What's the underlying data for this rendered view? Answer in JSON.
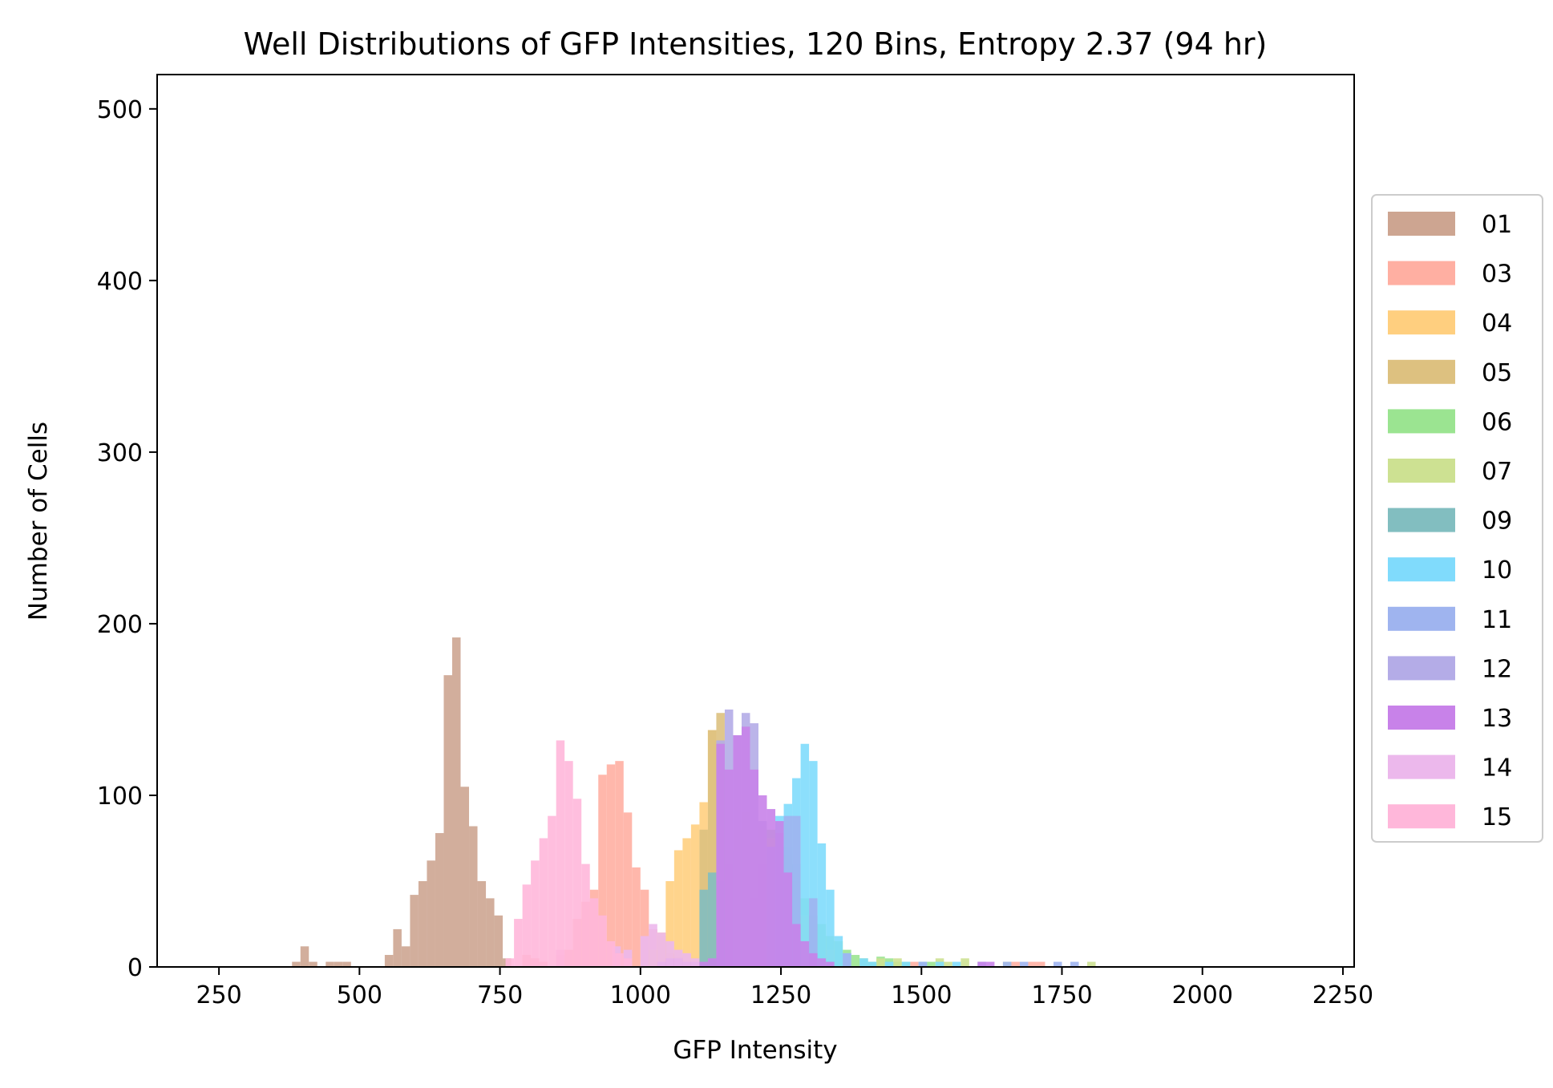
{
  "chart_data": {
    "type": "histogram",
    "title": "Well Distributions of GFP Intensities, 120 Bins, Entropy 2.37 (94 hr)",
    "xlabel": "GFP Intensity",
    "ylabel": "Number of Cells",
    "xlim": [
      140,
      2270
    ],
    "ylim": [
      0,
      520
    ],
    "x_ticks": [
      250,
      500,
      750,
      1000,
      1250,
      1500,
      1750,
      2000,
      2250
    ],
    "y_ticks": [
      0,
      100,
      200,
      300,
      400,
      500
    ],
    "bin_width": 15,
    "legend_position": "right",
    "series": [
      {
        "name": "01",
        "color": "#cda591",
        "values": [
          [
            380,
            3
          ],
          [
            395,
            12
          ],
          [
            410,
            3
          ],
          [
            440,
            3
          ],
          [
            455,
            3
          ],
          [
            470,
            3
          ],
          [
            545,
            7
          ],
          [
            560,
            22
          ],
          [
            575,
            12
          ],
          [
            590,
            42
          ],
          [
            605,
            50
          ],
          [
            620,
            62
          ],
          [
            635,
            78
          ],
          [
            650,
            170
          ],
          [
            665,
            192
          ],
          [
            680,
            105
          ],
          [
            695,
            82
          ],
          [
            710,
            50
          ],
          [
            725,
            40
          ],
          [
            740,
            30
          ],
          [
            755,
            5
          ]
        ]
      },
      {
        "name": "03",
        "color": "#ffafa2",
        "values": [
          [
            790,
            7
          ],
          [
            805,
            5
          ],
          [
            820,
            3
          ],
          [
            850,
            7
          ],
          [
            865,
            10
          ],
          [
            880,
            28
          ],
          [
            895,
            38
          ],
          [
            910,
            45
          ],
          [
            925,
            112
          ],
          [
            940,
            118
          ],
          [
            955,
            120
          ],
          [
            970,
            90
          ],
          [
            985,
            58
          ],
          [
            1000,
            45
          ],
          [
            1015,
            22
          ],
          [
            1030,
            18
          ],
          [
            1045,
            8
          ],
          [
            1060,
            6
          ],
          [
            1075,
            4
          ],
          [
            1480,
            3
          ],
          [
            1660,
            3
          ],
          [
            1690,
            3
          ],
          [
            1705,
            3
          ]
        ]
      },
      {
        "name": "04",
        "color": "#ffcf7f",
        "values": [
          [
            1015,
            10
          ],
          [
            1030,
            20
          ],
          [
            1045,
            50
          ],
          [
            1060,
            68
          ],
          [
            1075,
            75
          ],
          [
            1090,
            83
          ],
          [
            1105,
            96
          ],
          [
            1120,
            138
          ],
          [
            1135,
            120
          ],
          [
            1150,
            30
          ]
        ]
      },
      {
        "name": "05",
        "color": "#ddc180",
        "values": [
          [
            1105,
            80
          ],
          [
            1120,
            138
          ],
          [
            1135,
            148
          ],
          [
            1150,
            60
          ]
        ]
      },
      {
        "name": "06",
        "color": "#9be491",
        "values": [
          [
            1150,
            68
          ],
          [
            1165,
            80
          ],
          [
            1180,
            90
          ],
          [
            1195,
            72
          ],
          [
            1210,
            82
          ],
          [
            1225,
            80
          ],
          [
            1240,
            75
          ],
          [
            1255,
            65
          ],
          [
            1270,
            50
          ],
          [
            1285,
            40
          ],
          [
            1300,
            30
          ],
          [
            1315,
            25
          ],
          [
            1330,
            18
          ],
          [
            1345,
            15
          ],
          [
            1360,
            10
          ],
          [
            1375,
            7
          ],
          [
            1390,
            5
          ],
          [
            1405,
            3
          ],
          [
            1420,
            6
          ],
          [
            1435,
            5
          ],
          [
            1450,
            3
          ],
          [
            1465,
            3
          ],
          [
            1495,
            3
          ],
          [
            1510,
            3
          ]
        ]
      },
      {
        "name": "07",
        "color": "#cde192",
        "values": [
          [
            1195,
            40
          ],
          [
            1210,
            60
          ],
          [
            1225,
            75
          ],
          [
            1240,
            70
          ],
          [
            1255,
            55
          ],
          [
            1285,
            30
          ],
          [
            1330,
            10
          ],
          [
            1360,
            8
          ],
          [
            1420,
            5
          ],
          [
            1450,
            5
          ],
          [
            1525,
            5
          ],
          [
            1540,
            3
          ],
          [
            1570,
            5
          ],
          [
            1600,
            3
          ],
          [
            1645,
            3
          ],
          [
            1795,
            3
          ]
        ]
      },
      {
        "name": "09",
        "color": "#82bec0",
        "values": [
          [
            1105,
            45
          ],
          [
            1120,
            55
          ],
          [
            1135,
            50
          ],
          [
            1240,
            80
          ],
          [
            1255,
            70
          ],
          [
            1270,
            60
          ],
          [
            1300,
            30
          ]
        ]
      },
      {
        "name": "10",
        "color": "#80dbfc",
        "values": [
          [
            1240,
            88
          ],
          [
            1255,
            95
          ],
          [
            1270,
            110
          ],
          [
            1285,
            130
          ],
          [
            1300,
            120
          ],
          [
            1315,
            72
          ],
          [
            1330,
            45
          ],
          [
            1345,
            18
          ],
          [
            1360,
            8
          ],
          [
            1390,
            5
          ],
          [
            1405,
            3
          ],
          [
            1435,
            3
          ],
          [
            1465,
            3
          ],
          [
            1495,
            3
          ],
          [
            1525,
            3
          ],
          [
            1555,
            3
          ]
        ]
      },
      {
        "name": "11",
        "color": "#9fb4ef",
        "values": [
          [
            1225,
            70
          ],
          [
            1240,
            78
          ],
          [
            1255,
            88
          ],
          [
            1270,
            88
          ],
          [
            1300,
            40
          ],
          [
            1360,
            8
          ],
          [
            1495,
            3
          ],
          [
            1600,
            3
          ],
          [
            1645,
            3
          ],
          [
            1675,
            3
          ],
          [
            1735,
            3
          ],
          [
            1765,
            3
          ]
        ]
      },
      {
        "name": "12",
        "color": "#b4ace7",
        "values": [
          [
            1135,
            132
          ],
          [
            1150,
            150
          ],
          [
            1165,
            135
          ],
          [
            1180,
            148
          ],
          [
            1195,
            142
          ],
          [
            1210,
            85
          ]
        ]
      },
      {
        "name": "13",
        "color": "#c882e9",
        "values": [
          [
            1030,
            3
          ],
          [
            1045,
            5
          ],
          [
            1060,
            5
          ],
          [
            1075,
            3
          ],
          [
            1090,
            3
          ],
          [
            1105,
            3
          ],
          [
            1120,
            5
          ],
          [
            1135,
            130
          ],
          [
            1150,
            115
          ],
          [
            1165,
            135
          ],
          [
            1180,
            140
          ],
          [
            1195,
            115
          ],
          [
            1210,
            100
          ],
          [
            1225,
            92
          ],
          [
            1240,
            85
          ],
          [
            1255,
            55
          ],
          [
            1270,
            25
          ],
          [
            1285,
            15
          ],
          [
            1300,
            8
          ],
          [
            1315,
            5
          ],
          [
            1330,
            3
          ],
          [
            1600,
            3
          ],
          [
            1615,
            3
          ]
        ]
      },
      {
        "name": "14",
        "color": "#ecb8ec",
        "values": [
          [
            850,
            10
          ],
          [
            950,
            12
          ],
          [
            970,
            10
          ],
          [
            1000,
            18
          ],
          [
            1015,
            25
          ],
          [
            1030,
            20
          ],
          [
            1045,
            15
          ],
          [
            1060,
            10
          ],
          [
            1075,
            8
          ],
          [
            1090,
            5
          ]
        ]
      },
      {
        "name": "15",
        "color": "#ffb7da",
        "values": [
          [
            760,
            5
          ],
          [
            775,
            28
          ],
          [
            790,
            48
          ],
          [
            805,
            62
          ],
          [
            820,
            75
          ],
          [
            835,
            88
          ],
          [
            850,
            132
          ],
          [
            865,
            120
          ],
          [
            880,
            98
          ],
          [
            895,
            60
          ],
          [
            910,
            40
          ],
          [
            925,
            30
          ],
          [
            940,
            15
          ],
          [
            955,
            8
          ],
          [
            970,
            5
          ]
        ]
      }
    ]
  }
}
